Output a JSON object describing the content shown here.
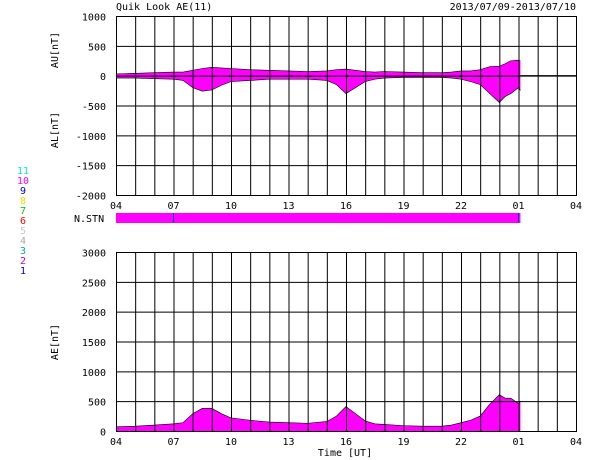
{
  "header": {
    "title": "Quik Look AE(11)",
    "date_range": "2013/07/09-2013/07/10"
  },
  "labels": {
    "au_axis": "AU[nT]",
    "al_axis": "AL[nT]",
    "nstn": "N.STN",
    "ae_axis": "AE[nT]",
    "x_axis": "Time [UT]"
  },
  "colors": {
    "fill": "#ff00ff",
    "grid": "#000000",
    "background": "#ffffff"
  },
  "station_legend": [
    {
      "label": "11",
      "color": "#00e5e5"
    },
    {
      "label": "10",
      "color": "#ff00ff"
    },
    {
      "label": "9",
      "color": "#0000cc"
    },
    {
      "label": "8",
      "color": "#f0d800"
    },
    {
      "label": "7",
      "color": "#00cc00"
    },
    {
      "label": "6",
      "color": "#ff0000"
    },
    {
      "label": "5",
      "color": "#c8c8c8"
    },
    {
      "label": "4",
      "color": "#a8a8a8"
    },
    {
      "label": "3",
      "color": "#00aaaa"
    },
    {
      "label": "2",
      "color": "#cc00cc"
    },
    {
      "label": "1",
      "color": "#0000cc"
    }
  ],
  "chart_data": [
    {
      "type": "area",
      "panel": "AU/AL",
      "x_ticks": [
        "04",
        "07",
        "10",
        "13",
        "16",
        "19",
        "22",
        "01",
        "04"
      ],
      "y_ticks": [
        "1000",
        "500",
        "0",
        "-500",
        "-1000",
        "-1500",
        "-2000"
      ],
      "ylim": [
        -2000,
        1000
      ],
      "xlim_hours": [
        4,
        28
      ],
      "data_end_hour": 25.1,
      "series": [
        {
          "name": "AU",
          "x": [
            4.0,
            5.0,
            6.0,
            7.0,
            7.5,
            8.0,
            8.5,
            9.0,
            9.5,
            10.0,
            11.0,
            12.0,
            13.0,
            14.0,
            15.0,
            15.5,
            16.0,
            16.5,
            17.0,
            17.5,
            18.0,
            19.0,
            20.0,
            21.0,
            21.5,
            22.0,
            22.5,
            23.0,
            23.5,
            24.0,
            24.3,
            24.6,
            25.0,
            25.1
          ],
          "values": [
            30,
            40,
            50,
            60,
            60,
            90,
            120,
            140,
            130,
            120,
            100,
            90,
            80,
            70,
            80,
            100,
            110,
            90,
            70,
            60,
            70,
            60,
            50,
            50,
            60,
            80,
            80,
            100,
            150,
            160,
            200,
            250,
            260,
            250
          ]
        },
        {
          "name": "AL",
          "x": [
            4.0,
            5.0,
            6.0,
            7.0,
            7.5,
            8.0,
            8.5,
            9.0,
            9.5,
            10.0,
            11.0,
            12.0,
            13.0,
            14.0,
            15.0,
            15.5,
            16.0,
            16.5,
            17.0,
            17.5,
            18.0,
            19.0,
            20.0,
            21.0,
            21.5,
            22.0,
            22.5,
            23.0,
            23.5,
            24.0,
            24.3,
            24.6,
            25.0,
            25.1
          ],
          "values": [
            -40,
            -40,
            -50,
            -60,
            -80,
            -200,
            -260,
            -240,
            -160,
            -100,
            -80,
            -60,
            -60,
            -60,
            -80,
            -150,
            -300,
            -200,
            -100,
            -60,
            -40,
            -30,
            -30,
            -30,
            -40,
            -60,
            -100,
            -150,
            -300,
            -450,
            -350,
            -300,
            -200,
            -250
          ]
        }
      ]
    },
    {
      "type": "area",
      "panel": "AE",
      "x_ticks": [
        "04",
        "07",
        "10",
        "13",
        "16",
        "19",
        "22",
        "01",
        "04"
      ],
      "y_ticks": [
        "3000",
        "2500",
        "2000",
        "1500",
        "1000",
        "500",
        "0"
      ],
      "ylim": [
        0,
        3000
      ],
      "xlim_hours": [
        4,
        28
      ],
      "data_end_hour": 25.1,
      "series": [
        {
          "name": "AE",
          "x": [
            4.0,
            5.0,
            6.0,
            7.0,
            7.5,
            8.0,
            8.5,
            9.0,
            9.5,
            10.0,
            11.0,
            12.0,
            13.0,
            14.0,
            15.0,
            15.5,
            16.0,
            16.5,
            17.0,
            17.5,
            18.0,
            19.0,
            20.0,
            21.0,
            21.5,
            22.0,
            22.5,
            23.0,
            23.5,
            24.0,
            24.3,
            24.6,
            25.0,
            25.1
          ],
          "values": [
            70,
            80,
            100,
            120,
            140,
            290,
            380,
            380,
            290,
            220,
            180,
            150,
            140,
            130,
            160,
            250,
            410,
            290,
            170,
            120,
            110,
            90,
            80,
            80,
            100,
            140,
            180,
            250,
            450,
            610,
            550,
            550,
            460,
            500
          ]
        }
      ]
    }
  ]
}
